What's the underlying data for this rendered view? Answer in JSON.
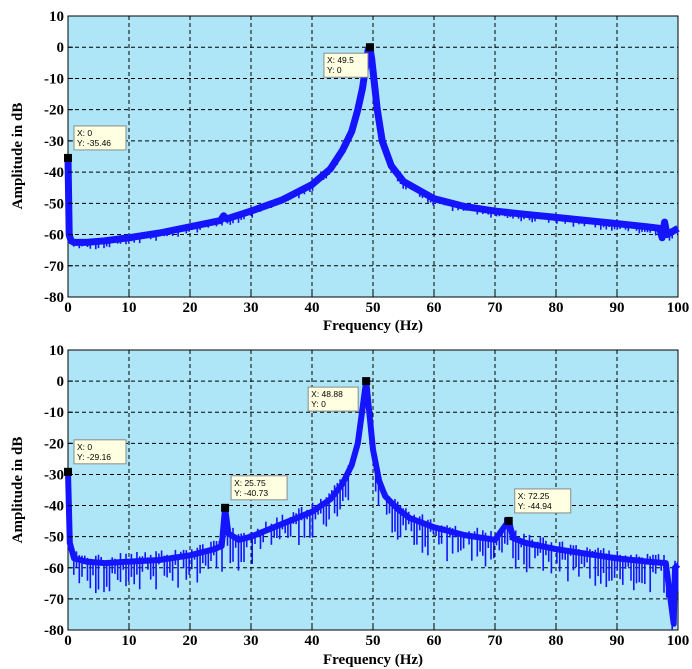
{
  "chart_data": [
    {
      "type": "line",
      "title": "",
      "xlabel": "Frequency (Hz)",
      "ylabel": "Amplitude in dB",
      "xlim": [
        0,
        100
      ],
      "ylim": [
        -80,
        10
      ],
      "xticks": [
        0,
        10,
        20,
        30,
        40,
        50,
        60,
        70,
        80,
        90,
        100
      ],
      "yticks": [
        10,
        0,
        -10,
        -20,
        -30,
        -40,
        -50,
        -60,
        -70,
        -80
      ],
      "grid": true,
      "colors": {
        "line": "#1414ff",
        "plot_bg": "#aee6f7",
        "grid": "#000000"
      },
      "series": [
        {
          "x": [
            0,
            0.2,
            0.5,
            1,
            3,
            6,
            10,
            15,
            20,
            25,
            25.5,
            26,
            30,
            35,
            40,
            43,
            45,
            46.5,
            47.5,
            48.3,
            48.8,
            49.2,
            49.5,
            49.8,
            50.2,
            50.7,
            51.5,
            53,
            55,
            60,
            65,
            70,
            75,
            80,
            85,
            90,
            95,
            97,
            97.4,
            97.8,
            98.2,
            100
          ],
          "y": [
            -35.46,
            -60,
            -62,
            -62.5,
            -62.5,
            -62,
            -61,
            -59.5,
            -57.5,
            -55.5,
            -54,
            -55,
            -52.5,
            -49,
            -44,
            -39,
            -33,
            -27,
            -20,
            -13,
            -6,
            -1,
            0,
            -4,
            -11,
            -20,
            -30,
            -38,
            -43,
            -48.5,
            -51,
            -52.5,
            -53.5,
            -54.5,
            -55.5,
            -56.5,
            -57.5,
            -58,
            -61,
            -56,
            -60,
            -58
          ]
        }
      ],
      "datatips": [
        {
          "x": 0,
          "y": -35.46,
          "line1": "X: 0",
          "line2": "Y: -35.46"
        },
        {
          "x": 49.5,
          "y": 0,
          "line1": "X: 49.5",
          "line2": "Y: 0"
        }
      ]
    },
    {
      "type": "line",
      "title": "",
      "xlabel": "Frequency (Hz)",
      "ylabel": "Amplitude in dB",
      "xlim": [
        0,
        100
      ],
      "ylim": [
        -80,
        10
      ],
      "xticks": [
        0,
        10,
        20,
        30,
        40,
        50,
        60,
        70,
        80,
        90,
        100
      ],
      "yticks": [
        10,
        0,
        -10,
        -20,
        -30,
        -40,
        -50,
        -60,
        -70,
        -80
      ],
      "grid": true,
      "colors": {
        "line": "#1414ff",
        "plot_bg": "#aee6f7",
        "grid": "#000000"
      },
      "series": [
        {
          "x": [
            0,
            0.3,
            1,
            3,
            6,
            10,
            15,
            20,
            24,
            25.2,
            25.75,
            26.3,
            28,
            30,
            35,
            40,
            43,
            45,
            46.5,
            47.5,
            48.2,
            48.88,
            49.5,
            50,
            51,
            52,
            54,
            56,
            60,
            65,
            70,
            72.25,
            73,
            75,
            80,
            85,
            90,
            95,
            98,
            99.3,
            99.5,
            100
          ],
          "y": [
            -29.16,
            -52,
            -57,
            -58,
            -58.5,
            -58,
            -57.5,
            -56,
            -54,
            -53,
            -40.73,
            -49,
            -51,
            -50,
            -46,
            -42,
            -38,
            -33,
            -27,
            -20,
            -10,
            0,
            -12,
            -22,
            -32,
            -37,
            -41,
            -44,
            -47,
            -49.5,
            -51,
            -44.94,
            -50.5,
            -52,
            -54,
            -55.5,
            -57,
            -58,
            -58.5,
            -78,
            -60,
            -59
          ]
        }
      ],
      "datatips": [
        {
          "x": 0,
          "y": -29.16,
          "line1": "X: 0",
          "line2": "Y: -29.16"
        },
        {
          "x": 25.75,
          "y": -40.73,
          "line1": "X: 25.75",
          "line2": "Y: -40.73"
        },
        {
          "x": 48.88,
          "y": 0,
          "line1": "X: 48.88",
          "line2": "Y: 0"
        },
        {
          "x": 72.25,
          "y": -44.94,
          "line1": "X: 72.25",
          "line2": "Y: -44.94"
        }
      ]
    }
  ]
}
